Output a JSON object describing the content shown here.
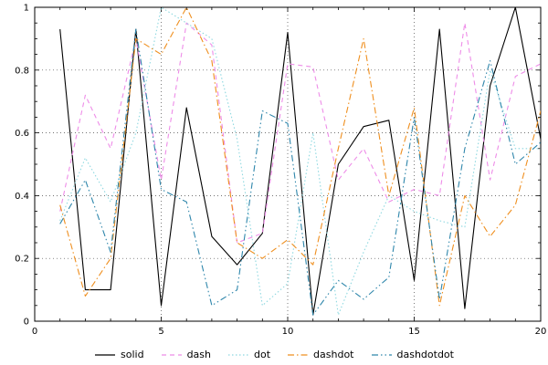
{
  "figure": {
    "background": "#ffffff",
    "grid_color": "#444444",
    "axis_color": "#000000",
    "tick_label_color": "#000000"
  },
  "axes": {
    "x": {
      "min": 0,
      "max": 20,
      "major_ticks": [
        0,
        5,
        10,
        15,
        20
      ],
      "minor_step": 1
    },
    "y": {
      "min": 0,
      "max": 1,
      "major_ticks": [
        0,
        0.2,
        0.4,
        0.6,
        0.8,
        1
      ],
      "major_tick_labels": [
        "0",
        "0.2",
        "0.4",
        "0.6",
        "0.8",
        "1"
      ],
      "minor_step": 0.05
    }
  },
  "chart_data": {
    "type": "line",
    "title": "",
    "xlabel": "",
    "ylabel": "",
    "xlim": [
      0,
      20
    ],
    "ylim": [
      0,
      1
    ],
    "grid": true,
    "grid_style": "dotted",
    "legend_position": "bottom-center",
    "x": [
      1,
      2,
      3,
      4,
      5,
      6,
      7,
      8,
      9,
      10,
      11,
      12,
      13,
      14,
      15,
      16,
      17,
      18,
      19,
      20
    ],
    "series": [
      {
        "name": "solid",
        "color": "#000000",
        "dash": "",
        "values": [
          0.93,
          0.1,
          0.1,
          0.93,
          0.05,
          0.68,
          0.27,
          0.18,
          0.28,
          0.92,
          0.02,
          0.5,
          0.62,
          0.64,
          0.13,
          0.93,
          0.04,
          0.75,
          1.0,
          0.58
        ]
      },
      {
        "name": "dash",
        "color": "#ee8ce8",
        "dash": "5,4",
        "values": [
          0.35,
          0.72,
          0.55,
          0.9,
          0.45,
          0.95,
          0.88,
          0.25,
          0.28,
          0.82,
          0.81,
          0.45,
          0.55,
          0.38,
          0.42,
          0.4,
          0.95,
          0.45,
          0.78,
          0.82
        ]
      },
      {
        "name": "dot",
        "color": "#8ed8e0",
        "dash": "1.5,2.5",
        "values": [
          0.32,
          0.52,
          0.38,
          0.6,
          1.0,
          0.95,
          0.9,
          0.58,
          0.05,
          0.12,
          0.6,
          0.02,
          0.22,
          0.4,
          0.35,
          0.32,
          0.3,
          0.8,
          0.55,
          0.55
        ]
      },
      {
        "name": "dashdot",
        "color": "#ef8f1f",
        "dash": "7,3,1.5,3",
        "values": [
          0.37,
          0.08,
          0.2,
          0.9,
          0.85,
          1.0,
          0.83,
          0.25,
          0.2,
          0.26,
          0.18,
          0.55,
          0.9,
          0.4,
          0.68,
          0.05,
          0.4,
          0.27,
          0.37,
          0.67
        ]
      },
      {
        "name": "dashdotdot",
        "color": "#2e86ab",
        "dash": "7,3,1.5,3,1.5,3",
        "values": [
          0.31,
          0.45,
          0.22,
          0.93,
          0.42,
          0.38,
          0.05,
          0.1,
          0.67,
          0.63,
          0.02,
          0.13,
          0.07,
          0.14,
          0.65,
          0.07,
          0.55,
          0.83,
          0.5,
          0.57
        ]
      }
    ]
  }
}
